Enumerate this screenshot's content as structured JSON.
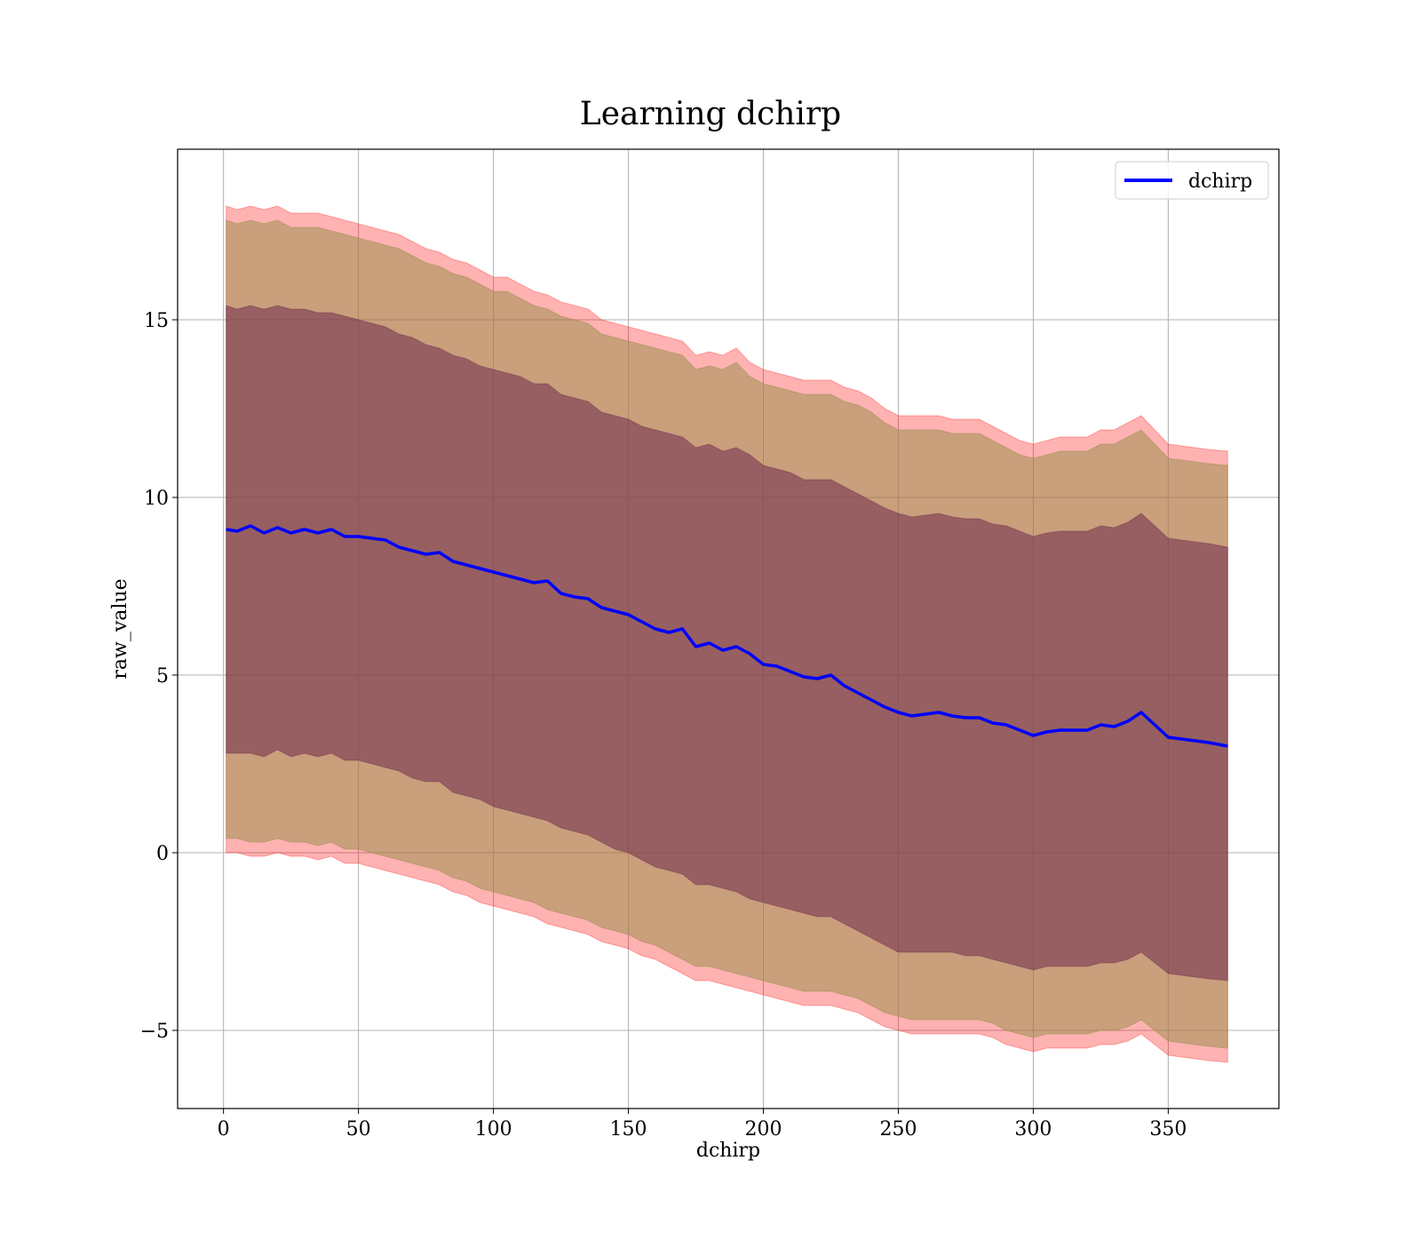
{
  "chart_data": {
    "type": "line",
    "title": "Learning dchirp",
    "xlabel": "dchirp",
    "ylabel": "raw_value",
    "xlim": [
      -17,
      391
    ],
    "ylim": [
      -7.2,
      19.8
    ],
    "grid": true,
    "legend_position": "top-right",
    "x_ticks": [
      0,
      50,
      100,
      150,
      200,
      250,
      300,
      350
    ],
    "x_tick_labels": [
      "0",
      "50",
      "100",
      "150",
      "200",
      "250",
      "300",
      "350"
    ],
    "y_ticks": [
      -5,
      0,
      5,
      10,
      15
    ],
    "y_tick_labels": [
      "−5",
      "0",
      "5",
      "10",
      "15"
    ],
    "colors": {
      "line": "#0000ff",
      "outer_band": "#ff0000",
      "middle_band": "#9c9050",
      "inner_band": "#6e2a4a",
      "grid": "#b0b0b0"
    },
    "series": [
      {
        "name": "dchirp",
        "x": [
          1,
          5,
          10,
          15,
          20,
          25,
          30,
          35,
          40,
          45,
          50,
          55,
          60,
          65,
          70,
          75,
          80,
          85,
          90,
          95,
          100,
          105,
          110,
          115,
          120,
          125,
          130,
          135,
          140,
          145,
          150,
          155,
          160,
          165,
          170,
          175,
          180,
          185,
          190,
          195,
          200,
          205,
          210,
          215,
          220,
          225,
          230,
          235,
          240,
          245,
          250,
          255,
          260,
          265,
          270,
          275,
          280,
          285,
          290,
          295,
          300,
          305,
          310,
          315,
          320,
          325,
          330,
          335,
          340,
          345,
          350,
          355,
          360,
          365,
          372
        ],
        "y": [
          9.1,
          9.05,
          9.2,
          9.0,
          9.15,
          9.0,
          9.1,
          9.0,
          9.1,
          8.9,
          8.9,
          8.85,
          8.8,
          8.6,
          8.5,
          8.4,
          8.45,
          8.2,
          8.1,
          8.0,
          7.9,
          7.8,
          7.7,
          7.6,
          7.65,
          7.3,
          7.2,
          7.15,
          6.9,
          6.8,
          6.7,
          6.5,
          6.3,
          6.2,
          6.3,
          5.8,
          5.9,
          5.7,
          5.8,
          5.6,
          5.3,
          5.25,
          5.1,
          4.95,
          4.9,
          5.0,
          4.7,
          4.5,
          4.3,
          4.1,
          3.95,
          3.85,
          3.9,
          3.95,
          3.85,
          3.8,
          3.8,
          3.65,
          3.6,
          3.45,
          3.3,
          3.4,
          3.45,
          3.45,
          3.45,
          3.6,
          3.55,
          3.7,
          3.95,
          3.6,
          3.25,
          3.2,
          3.15,
          3.1,
          3.0
        ],
        "outer_band_upper": [
          18.2,
          18.1,
          18.2,
          18.1,
          18.2,
          18.0,
          18.0,
          18.0,
          17.9,
          17.8,
          17.7,
          17.6,
          17.5,
          17.4,
          17.2,
          17.0,
          16.9,
          16.7,
          16.6,
          16.4,
          16.2,
          16.2,
          16.0,
          15.8,
          15.7,
          15.5,
          15.4,
          15.3,
          15.0,
          14.9,
          14.8,
          14.7,
          14.6,
          14.5,
          14.4,
          14.0,
          14.1,
          14.0,
          14.2,
          13.8,
          13.6,
          13.5,
          13.4,
          13.3,
          13.3,
          13.3,
          13.1,
          13.0,
          12.8,
          12.5,
          12.3,
          12.3,
          12.3,
          12.3,
          12.2,
          12.2,
          12.2,
          12.0,
          11.8,
          11.6,
          11.5,
          11.6,
          11.7,
          11.7,
          11.7,
          11.9,
          11.9,
          12.1,
          12.3,
          11.9,
          11.5,
          11.45,
          11.4,
          11.35,
          11.3
        ],
        "outer_band_lower": [
          0.0,
          0.0,
          -0.1,
          -0.1,
          0.0,
          -0.1,
          -0.1,
          -0.2,
          -0.1,
          -0.3,
          -0.3,
          -0.4,
          -0.5,
          -0.6,
          -0.7,
          -0.8,
          -0.9,
          -1.1,
          -1.2,
          -1.4,
          -1.5,
          -1.6,
          -1.7,
          -1.8,
          -2.0,
          -2.1,
          -2.2,
          -2.3,
          -2.5,
          -2.6,
          -2.7,
          -2.9,
          -3.0,
          -3.2,
          -3.4,
          -3.6,
          -3.6,
          -3.7,
          -3.8,
          -3.9,
          -4.0,
          -4.1,
          -4.2,
          -4.3,
          -4.3,
          -4.3,
          -4.4,
          -4.5,
          -4.7,
          -4.9,
          -5.0,
          -5.1,
          -5.1,
          -5.1,
          -5.1,
          -5.1,
          -5.1,
          -5.2,
          -5.4,
          -5.5,
          -5.6,
          -5.5,
          -5.5,
          -5.5,
          -5.5,
          -5.4,
          -5.4,
          -5.3,
          -5.1,
          -5.4,
          -5.7,
          -5.75,
          -5.8,
          -5.85,
          -5.9
        ],
        "middle_band_upper": [
          17.8,
          17.7,
          17.8,
          17.7,
          17.8,
          17.6,
          17.6,
          17.6,
          17.5,
          17.4,
          17.3,
          17.2,
          17.1,
          17.0,
          16.8,
          16.6,
          16.5,
          16.3,
          16.2,
          16.0,
          15.8,
          15.8,
          15.6,
          15.4,
          15.3,
          15.1,
          15.0,
          14.9,
          14.6,
          14.5,
          14.4,
          14.3,
          14.2,
          14.1,
          14.0,
          13.6,
          13.7,
          13.6,
          13.8,
          13.4,
          13.2,
          13.1,
          13.0,
          12.9,
          12.9,
          12.9,
          12.7,
          12.6,
          12.4,
          12.1,
          11.9,
          11.9,
          11.9,
          11.9,
          11.8,
          11.8,
          11.8,
          11.6,
          11.4,
          11.2,
          11.1,
          11.2,
          11.3,
          11.3,
          11.3,
          11.5,
          11.5,
          11.7,
          11.9,
          11.5,
          11.1,
          11.05,
          11.0,
          10.95,
          10.9
        ],
        "middle_band_lower": [
          0.4,
          0.4,
          0.3,
          0.3,
          0.4,
          0.3,
          0.3,
          0.2,
          0.3,
          0.1,
          0.1,
          0.0,
          -0.1,
          -0.2,
          -0.3,
          -0.4,
          -0.5,
          -0.7,
          -0.8,
          -1.0,
          -1.1,
          -1.2,
          -1.3,
          -1.4,
          -1.6,
          -1.7,
          -1.8,
          -1.9,
          -2.1,
          -2.2,
          -2.3,
          -2.5,
          -2.6,
          -2.8,
          -3.0,
          -3.2,
          -3.2,
          -3.3,
          -3.4,
          -3.5,
          -3.6,
          -3.7,
          -3.8,
          -3.9,
          -3.9,
          -3.9,
          -4.0,
          -4.1,
          -4.3,
          -4.5,
          -4.6,
          -4.7,
          -4.7,
          -4.7,
          -4.7,
          -4.7,
          -4.7,
          -4.8,
          -5.0,
          -5.1,
          -5.2,
          -5.1,
          -5.1,
          -5.1,
          -5.1,
          -5.0,
          -5.0,
          -4.9,
          -4.7,
          -5.0,
          -5.3,
          -5.35,
          -5.4,
          -5.45,
          -5.5
        ],
        "inner_band_upper": [
          15.4,
          15.3,
          15.4,
          15.3,
          15.4,
          15.3,
          15.3,
          15.2,
          15.2,
          15.1,
          15.0,
          14.9,
          14.8,
          14.6,
          14.5,
          14.3,
          14.2,
          14.0,
          13.9,
          13.7,
          13.6,
          13.5,
          13.4,
          13.2,
          13.2,
          12.9,
          12.8,
          12.7,
          12.4,
          12.3,
          12.2,
          12.0,
          11.9,
          11.8,
          11.7,
          11.4,
          11.5,
          11.3,
          11.4,
          11.2,
          10.9,
          10.8,
          10.7,
          10.5,
          10.5,
          10.5,
          10.3,
          10.1,
          9.9,
          9.7,
          9.55,
          9.45,
          9.5,
          9.55,
          9.45,
          9.4,
          9.4,
          9.25,
          9.2,
          9.05,
          8.9,
          9.0,
          9.05,
          9.05,
          9.05,
          9.2,
          9.15,
          9.3,
          9.55,
          9.2,
          8.85,
          8.8,
          8.75,
          8.7,
          8.6
        ],
        "inner_band_lower": [
          2.8,
          2.8,
          2.8,
          2.7,
          2.9,
          2.7,
          2.8,
          2.7,
          2.8,
          2.6,
          2.6,
          2.5,
          2.4,
          2.3,
          2.1,
          2.0,
          2.0,
          1.7,
          1.6,
          1.5,
          1.3,
          1.2,
          1.1,
          1.0,
          0.9,
          0.7,
          0.6,
          0.5,
          0.3,
          0.1,
          0.0,
          -0.2,
          -0.4,
          -0.5,
          -0.6,
          -0.9,
          -0.9,
          -1.0,
          -1.1,
          -1.3,
          -1.4,
          -1.5,
          -1.6,
          -1.7,
          -1.8,
          -1.8,
          -2.0,
          -2.2,
          -2.4,
          -2.6,
          -2.8,
          -2.8,
          -2.8,
          -2.8,
          -2.8,
          -2.9,
          -2.9,
          -3.0,
          -3.1,
          -3.2,
          -3.3,
          -3.2,
          -3.2,
          -3.2,
          -3.2,
          -3.1,
          -3.1,
          -3.0,
          -2.8,
          -3.1,
          -3.4,
          -3.45,
          -3.5,
          -3.55,
          -3.6
        ]
      }
    ]
  }
}
